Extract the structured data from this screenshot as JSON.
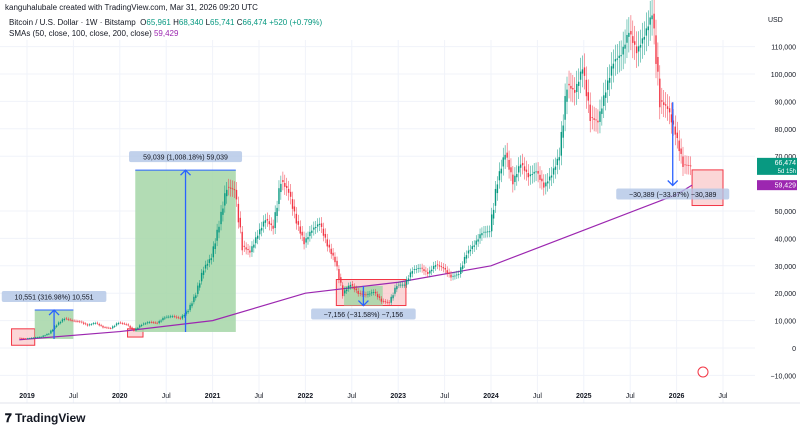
{
  "header": {
    "creator": "kanguhalubale created with TradingView.com, Mar 31, 2026 09:20 UTC"
  },
  "legend": {
    "symbol": "Bitcoin / U.S. Dollar · 1W · Bitstamp",
    "open_label": "O",
    "open": "65,961",
    "high_label": "H",
    "high": "68,340",
    "low_label": "L",
    "low": "65,741",
    "close_label": "C",
    "close": "66,474",
    "change": "+520 (+0.79%)",
    "sma_label": "SMAs (50, close, 100, close, 200, close)",
    "sma_value": "59,429"
  },
  "brand": "TradingView",
  "colors": {
    "up": "#089981",
    "down": "#f23645",
    "sma": "#9c27b0",
    "measure_up": "#a5d6a7",
    "measure_down": "#f8bbbd",
    "arrow": "#2962ff"
  },
  "chart_data": {
    "type": "candlestick",
    "currency": "USD",
    "ylim": [
      -15000,
      125000
    ],
    "yticks": [
      -10000,
      0,
      10000,
      20000,
      30000,
      40000,
      50000,
      70000,
      80000,
      90000,
      100000,
      110000
    ],
    "ytick_labels": [
      "−10,000",
      "0",
      "10,000",
      "20,000",
      "30,000",
      "40,000",
      "50,000",
      "70,000",
      "80,000",
      "90,000",
      "100,000",
      "110,000"
    ],
    "xticks": [
      "2019",
      "Jul",
      "2020",
      "Jul",
      "2021",
      "Jul",
      "2022",
      "Jul",
      "2023",
      "Jul",
      "2024",
      "Jul",
      "2025",
      "Jul",
      "2026",
      "Jul"
    ],
    "monthly_closes": {
      "start": "2018-12",
      "values": [
        3700,
        3400,
        3800,
        4100,
        5300,
        8500,
        10800,
        10000,
        9600,
        8300,
        9200,
        7600,
        7200,
        9300,
        8600,
        6400,
        8600,
        9500,
        9100,
        11300,
        11600,
        10800,
        13800,
        19700,
        29000,
        33100,
        45200,
        58800,
        57700,
        37300,
        35000,
        41500,
        47100,
        43800,
        61300,
        57000,
        46300,
        38500,
        43200,
        45500,
        37700,
        31800,
        19900,
        23300,
        20000,
        19400,
        20500,
        17200,
        16500,
        23100,
        23100,
        28500,
        29300,
        27200,
        30500,
        29200,
        26000,
        27000,
        34500,
        37700,
        42300,
        42600,
        61200,
        71300,
        60600,
        67500,
        62700,
        64600,
        59000,
        63300,
        70200,
        96400,
        93400,
        102400,
        84300,
        82500,
        94200,
        104600,
        107100,
        115700,
        108200,
        114000,
        122000,
        90400,
        87500,
        78600,
        67000,
        66474
      ]
    },
    "sma200": {
      "points": [
        [
          "2018-12",
          3000
        ],
        [
          "2020-01",
          6000
        ],
        [
          "2021-01",
          10000
        ],
        [
          "2022-01",
          20000
        ],
        [
          "2023-01",
          24000
        ],
        [
          "2024-01",
          30000
        ],
        [
          "2025-01",
          43000
        ],
        [
          "2026-01",
          56000
        ],
        [
          "2026-03",
          59429
        ]
      ]
    },
    "last_price": "66,474",
    "countdown": "5d 15h",
    "sma_price": "59,429",
    "measurements": [
      {
        "label": "10,551 (316.98%) 10,551",
        "direction": "up",
        "from": 3300,
        "to": 13850,
        "start": "2019-02",
        "end": "2019-07"
      },
      {
        "label": "59,039 (1,008.18%) 59,039",
        "direction": "up",
        "from": 5850,
        "to": 64900,
        "start": "2020-03",
        "end": "2021-04"
      },
      {
        "label": "−7,156 (−31.58%) −7,156",
        "direction": "down",
        "from": 22660,
        "to": 15500,
        "start": "2022-06",
        "end": "2022-11"
      },
      {
        "label": "−30,389 (−33.87%) −30,389",
        "direction": "down",
        "from": 89700,
        "to": 59311,
        "start": "2025-11",
        "end": "2026-02"
      }
    ],
    "boxes": [
      {
        "start": "2018-11",
        "end": "2019-02",
        "low": 1000,
        "high": 7000
      },
      {
        "start": "2020-02",
        "end": "2020-04",
        "low": 4000,
        "high": 7000
      },
      {
        "start": "2022-05",
        "end": "2023-02",
        "low": 15500,
        "high": 25000
      },
      {
        "start": "2026-03",
        "end": "2026-07",
        "low": 52000,
        "high": 65000
      }
    ]
  }
}
